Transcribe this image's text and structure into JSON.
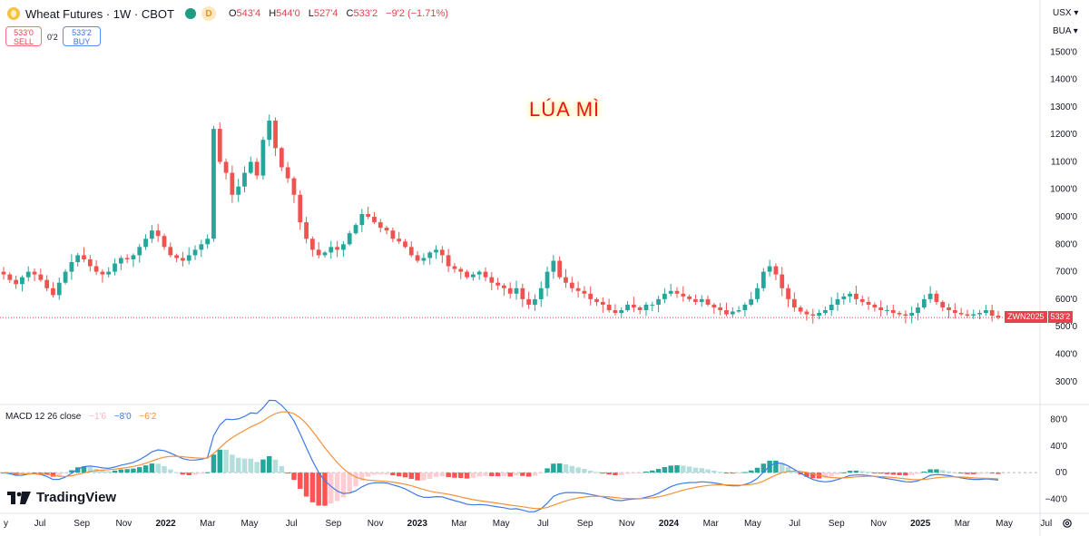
{
  "header": {
    "title": "Wheat Futures · 1W · CBOT",
    "interval_badge": "D",
    "ohlc": [
      {
        "label": "O",
        "value": "543'4"
      },
      {
        "label": "H",
        "value": "544'0"
      },
      {
        "label": "L",
        "value": "527'4"
      },
      {
        "label": "C",
        "value": "533'2"
      }
    ],
    "change": "−9'2 (−1.71%)"
  },
  "trade": {
    "sell_price": "533'0",
    "sell_label": "SELL",
    "spread": "0'2",
    "buy_price": "533'2",
    "buy_label": "BUY"
  },
  "currency": "USX",
  "unit": "BUA",
  "annotation": "LÚA MÌ",
  "last_price_tag": {
    "symbol": "ZWN2025",
    "price": "533'2"
  },
  "macd_legend": {
    "label": "MACD 12 26 close",
    "hist": "−1'6",
    "macd": "−8'0",
    "signal": "−6'2"
  },
  "brand": "TradingView",
  "colors": {
    "up": "#26a69a",
    "down": "#ef5350",
    "macd": "#3f79e8",
    "signal": "#f2923a",
    "last_price": "#e5424d"
  },
  "chart_data": [
    {
      "type": "candlestick",
      "title": "Wheat Futures · 1W · CBOT",
      "y_ticks": [
        "300'0",
        "400'0",
        "500'0",
        "600'0",
        "700'0",
        "800'0",
        "900'0",
        "1000'0",
        "1100'0",
        "1200'0",
        "1300'0",
        "1400'0",
        "1500'0"
      ],
      "ylim": [
        220,
        1590
      ],
      "x_ticks": [
        "y",
        "Jul",
        "Sep",
        "Nov",
        "2022",
        "Mar",
        "May",
        "Jul",
        "Sep",
        "Nov",
        "2023",
        "Mar",
        "May",
        "Jul",
        "Sep",
        "Nov",
        "2024",
        "Mar",
        "May",
        "Jul",
        "Sep",
        "Nov",
        "2025",
        "Mar",
        "May",
        "Jul"
      ],
      "last_price": 533.25,
      "series_close": [
        690,
        670,
        655,
        680,
        700,
        690,
        670,
        640,
        615,
        660,
        700,
        735,
        760,
        745,
        720,
        700,
        690,
        700,
        730,
        750,
        745,
        760,
        790,
        820,
        850,
        830,
        790,
        760,
        750,
        740,
        760,
        780,
        800,
        820,
        1220,
        1100,
        1060,
        980,
        1010,
        1060,
        1100,
        1050,
        1180,
        1250,
        1150,
        1080,
        1040,
        980,
        880,
        820,
        780,
        760,
        770,
        790,
        780,
        800,
        840,
        870,
        910,
        900,
        880,
        860,
        850,
        820,
        810,
        790,
        760,
        740,
        750,
        770,
        780,
        760,
        720,
        710,
        700,
        680,
        690,
        700,
        680,
        660,
        650,
        640,
        620,
        640,
        600,
        580,
        600,
        640,
        700,
        740,
        680,
        660,
        640,
        630,
        620,
        600,
        590,
        580,
        560,
        550,
        560,
        580,
        570,
        560,
        580,
        580,
        600,
        620,
        630,
        620,
        610,
        600,
        590,
        600,
        580,
        570,
        560,
        545,
        555,
        560,
        580,
        600,
        640,
        700,
        720,
        690,
        640,
        600,
        570,
        555,
        545,
        540,
        550,
        560,
        580,
        600,
        610,
        620,
        600,
        590,
        580,
        570,
        560,
        560,
        550,
        545,
        540,
        550,
        570,
        600,
        620,
        590,
        570,
        560,
        550,
        545,
        540,
        545,
        550,
        560,
        540,
        533
      ]
    },
    {
      "type": "macd",
      "legend": [
        "MACD 12 26 close",
        "−1'6",
        "−8'0",
        "−6'2"
      ],
      "y_ticks": [
        "−40'0",
        "0'0",
        "40'0",
        "80'0"
      ],
      "ylim": [
        -60,
        100
      ]
    }
  ]
}
